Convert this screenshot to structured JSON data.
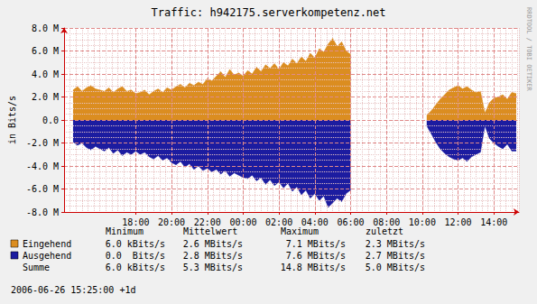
{
  "chart_data": {
    "type": "area",
    "title": "Traffic: h942175.serverkompetenz.net",
    "y_label": "in Bits/s",
    "x": [
      14.5,
      14.75,
      15,
      15.25,
      15.5,
      15.75,
      16,
      16.25,
      16.5,
      16.75,
      17,
      17.25,
      17.5,
      17.75,
      18,
      18.25,
      18.5,
      18.75,
      19,
      19.25,
      19.5,
      19.75,
      20,
      20.25,
      20.5,
      20.75,
      21,
      21.25,
      21.5,
      21.75,
      22,
      22.25,
      22.5,
      22.75,
      23,
      23.25,
      23.5,
      23.75,
      24,
      24.25,
      24.5,
      24.75,
      25,
      25.25,
      25.5,
      25.75,
      26,
      26.25,
      26.5,
      26.75,
      27,
      27.25,
      27.5,
      27.75,
      28,
      28.25,
      28.5,
      28.75,
      29,
      29.25,
      29.5,
      29.75,
      30,
      32,
      34.25,
      34.5,
      34.75,
      35,
      35.25,
      35.5,
      35.75,
      36,
      36.25,
      36.5,
      36.75,
      37,
      37.25,
      37.5,
      37.75,
      38,
      38.25,
      38.5,
      38.75,
      39,
      39.25
    ],
    "series": [
      {
        "name": "Eingehend",
        "color": "#db8d20",
        "values": [
          2.6,
          2.9,
          2.5,
          2.8,
          3.0,
          2.7,
          2.6,
          2.5,
          2.8,
          2.4,
          2.7,
          2.9,
          2.5,
          2.6,
          2.3,
          2.4,
          2.6,
          2.2,
          2.5,
          2.7,
          2.4,
          2.8,
          2.6,
          2.9,
          3.1,
          2.8,
          3.2,
          3.0,
          3.3,
          3.1,
          3.6,
          3.4,
          3.8,
          4.2,
          3.7,
          4.4,
          3.9,
          4.1,
          3.8,
          4.3,
          4.0,
          4.6,
          4.2,
          4.8,
          4.5,
          4.9,
          4.4,
          5.0,
          4.7,
          5.3,
          4.9,
          5.5,
          5.1,
          5.8,
          5.4,
          6.2,
          5.9,
          6.6,
          7.1,
          6.4,
          6.8,
          6.0,
          5.7,
          null,
          0.4,
          0.8,
          1.3,
          1.8,
          2.2,
          2.6,
          2.8,
          3.0,
          2.7,
          2.9,
          2.6,
          2.4,
          2.5,
          0.6,
          1.5,
          1.9,
          2.0,
          2.2,
          1.8,
          2.4,
          2.3
        ]
      },
      {
        "name": "Ausgehend",
        "color": "#1c1ca0",
        "values": [
          -1.9,
          -2.2,
          -2.0,
          -2.4,
          -2.6,
          -2.3,
          -2.5,
          -2.7,
          -2.4,
          -2.9,
          -2.6,
          -3.1,
          -2.8,
          -3.0,
          -2.7,
          -3.0,
          -2.8,
          -3.2,
          -3.4,
          -3.1,
          -3.5,
          -3.3,
          -3.7,
          -3.9,
          -3.6,
          -4.1,
          -3.8,
          -4.3,
          -4.0,
          -4.4,
          -4.2,
          -4.5,
          -4.3,
          -4.7,
          -4.4,
          -4.9,
          -4.6,
          -4.8,
          -5.0,
          -5.1,
          -4.8,
          -5.3,
          -5.0,
          -5.6,
          -5.2,
          -5.7,
          -5.4,
          -5.9,
          -5.5,
          -6.2,
          -5.8,
          -6.5,
          -6.1,
          -6.8,
          -6.4,
          -7.0,
          -6.6,
          -7.6,
          -7.2,
          -6.8,
          -7.1,
          -6.4,
          -6.1,
          null,
          -0.5,
          -1.2,
          -1.9,
          -2.5,
          -2.9,
          -3.2,
          -3.4,
          -3.5,
          -3.3,
          -3.6,
          -3.2,
          -3.0,
          -2.8,
          -0.5,
          -1.6,
          -2.0,
          -2.3,
          -2.5,
          -2.1,
          -2.7,
          -2.7
        ]
      }
    ],
    "xlim": [
      14,
      39.4
    ],
    "xticks": [
      {
        "value": 18,
        "label": "18:00"
      },
      {
        "value": 20,
        "label": "20:00"
      },
      {
        "value": 22,
        "label": "22:00"
      },
      {
        "value": 24,
        "label": "00:00"
      },
      {
        "value": 26,
        "label": "02:00"
      },
      {
        "value": 28,
        "label": "04:00"
      },
      {
        "value": 30,
        "label": "06:00"
      },
      {
        "value": 32,
        "label": "08:00"
      },
      {
        "value": 34,
        "label": "10:00"
      },
      {
        "value": 36,
        "label": "12:00"
      },
      {
        "value": 38,
        "label": "14:00"
      }
    ],
    "ylim": [
      -8,
      8
    ],
    "yticks": [
      {
        "value": -8,
        "label": "-8.0 M"
      },
      {
        "value": -6,
        "label": "-6.0 M"
      },
      {
        "value": -4,
        "label": "-4.0 M"
      },
      {
        "value": -2,
        "label": "-2.0 M"
      },
      {
        "value": 0,
        "label": "0.0"
      },
      {
        "value": 2,
        "label": "2.0 M"
      },
      {
        "value": 4,
        "label": "4.0 M"
      },
      {
        "value": 6,
        "label": "6.0 M"
      },
      {
        "value": 8,
        "label": "8.0 M"
      }
    ],
    "grid": true,
    "stats_table": {
      "columns": [
        "Minimum",
        "Mittelwert",
        "Maximum",
        "zuletzt"
      ],
      "rows": [
        {
          "name": "Eingehend",
          "cells": [
            "6.0 kBits/s",
            "2.6 MBits/s",
            "7.1 MBits/s",
            "2.3 MBits/s"
          ]
        },
        {
          "name": "Ausgehend",
          "cells": [
            "0.0  Bits/s",
            "2.8 MBits/s",
            "7.6 MBits/s",
            "2.7 MBits/s"
          ]
        },
        {
          "name": "Summe",
          "cells": [
            "6.0 kBits/s",
            "5.3 MBits/s",
            "14.8 MBits/s",
            "5.0 MBits/s"
          ]
        }
      ]
    },
    "footer": "2006-06-26 15:25:00 +1d",
    "watermark": "RRDTOOL / TOBI OETIKER"
  }
}
